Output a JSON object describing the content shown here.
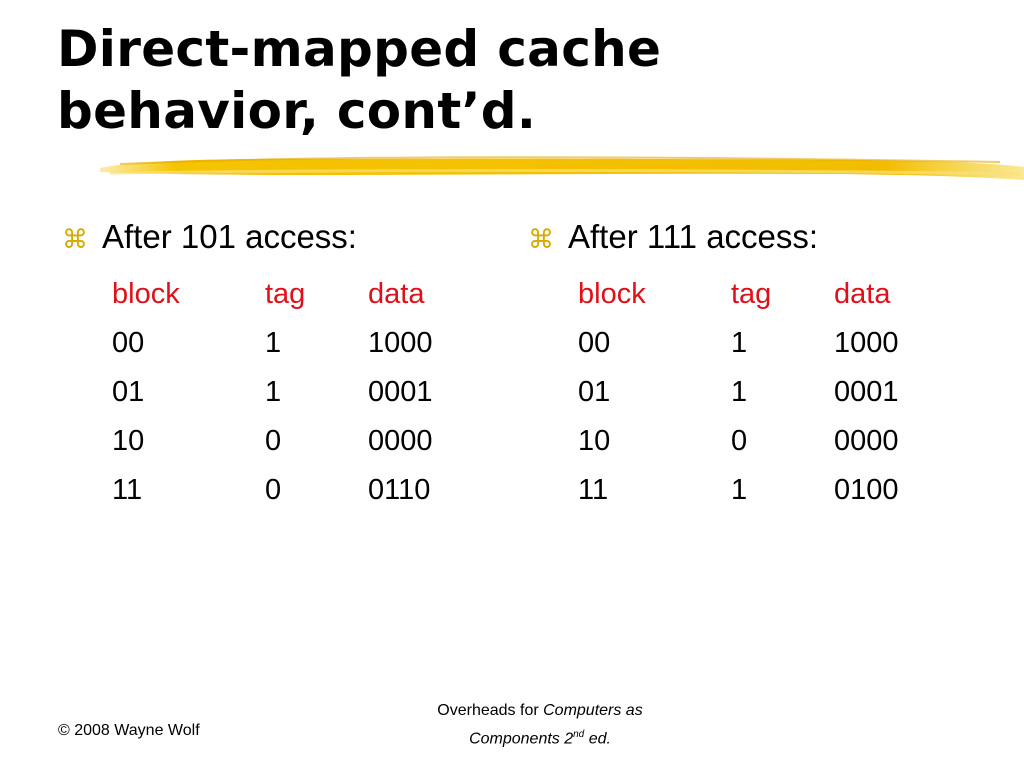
{
  "slide": {
    "title_line1": "Direct-mapped cache",
    "title_line2": "behavior, cont’d.",
    "bullet_icon": "command-key-icon",
    "accent_color": "#f5c400",
    "header_color": "#e0101a"
  },
  "left": {
    "heading": "After 101 access:",
    "columns": [
      "block",
      "tag",
      "data"
    ],
    "rows": [
      [
        "00",
        "1",
        "1000"
      ],
      [
        "01",
        "1",
        "0001"
      ],
      [
        "10",
        "0",
        "0000"
      ],
      [
        "11",
        "0",
        "0110"
      ]
    ]
  },
  "right": {
    "heading": "After 111 access:",
    "columns": [
      "block",
      "tag",
      "data"
    ],
    "rows": [
      [
        "00",
        "1",
        "1000"
      ],
      [
        "01",
        "1",
        "0001"
      ],
      [
        "10",
        "0",
        "0000"
      ],
      [
        "11",
        "1",
        "0100"
      ]
    ]
  },
  "footer": {
    "copyright": "© 2008 Wayne Wolf",
    "overheads_prefix": "Overheads for ",
    "book_title": "Computers as",
    "book_title_2": "Components 2",
    "edition_sup": "nd",
    "edition_suffix": " ed."
  }
}
